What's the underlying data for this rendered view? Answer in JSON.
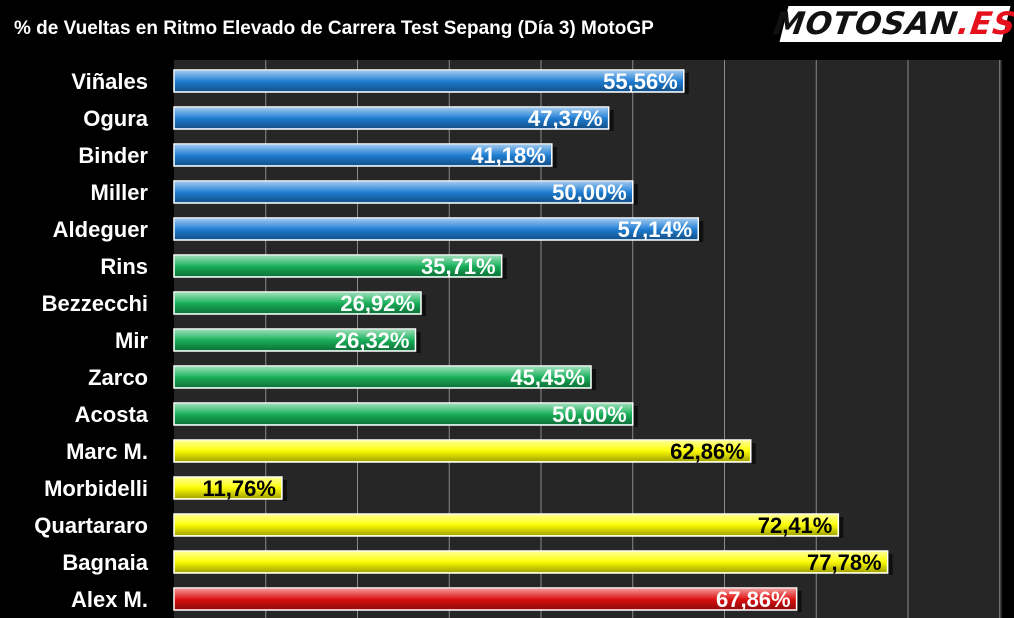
{
  "chart_data": {
    "type": "bar",
    "orientation": "horizontal",
    "title": "% de Vueltas en Ritmo Elevado de Carrera Test Sepang (Día 3) MotoGP",
    "categories": [
      "Viñales",
      "Ogura",
      "Binder",
      "Miller",
      "Aldeguer",
      "Rins",
      "Bezzecchi",
      "Mir",
      "Zarco",
      "Acosta",
      "Marc M.",
      "Morbidelli",
      "Quartararo",
      "Bagnaia",
      "Alex M."
    ],
    "values": [
      55.56,
      47.37,
      41.18,
      50.0,
      57.14,
      35.71,
      26.92,
      26.32,
      45.45,
      50.0,
      62.86,
      11.76,
      72.41,
      77.78,
      67.86
    ],
    "labels": [
      "55,56%",
      "47,37%",
      "41,18%",
      "50,00%",
      "57,14%",
      "35,71%",
      "26,92%",
      "26,32%",
      "45,45%",
      "50,00%",
      "62,86%",
      "11,76%",
      "72,41%",
      "77,78%",
      "67,86%"
    ],
    "bar_colors": [
      "#1f7fd6",
      "#1f7fd6",
      "#1f7fd6",
      "#1f7fd6",
      "#1f7fd6",
      "#18b25a",
      "#18b25a",
      "#18b25a",
      "#18b25a",
      "#18b25a",
      "#ffff00",
      "#ffff00",
      "#ffff00",
      "#ffff00",
      "#e01010"
    ],
    "label_colors": [
      "#ffffff",
      "#ffffff",
      "#ffffff",
      "#ffffff",
      "#ffffff",
      "#ffffff",
      "#ffffff",
      "#ffffff",
      "#ffffff",
      "#ffffff",
      "#000000",
      "#000000",
      "#000000",
      "#000000",
      "#ffffff"
    ],
    "xlim": [
      0,
      100
    ],
    "grid": true,
    "xlabel": "",
    "ylabel": ""
  },
  "logo": {
    "part1": "MOTOSAN",
    "part2": ".ES"
  },
  "colors": {
    "plot_background": "#262626",
    "gridline": "#8a8a8a",
    "page_background": "#000000"
  }
}
